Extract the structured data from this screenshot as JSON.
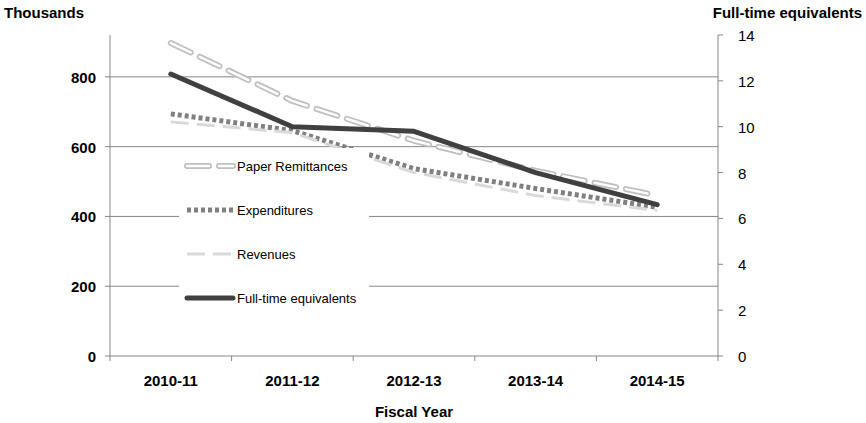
{
  "chart_data": {
    "type": "line",
    "y_label": "Thousands",
    "y2_label": "Full-time equivalents",
    "x_label": "Fiscal Year",
    "categories": [
      "2010-11",
      "2011-12",
      "2012-13",
      "2013-14",
      "2014-15"
    ],
    "ylim": [
      0,
      920
    ],
    "yticks": [
      0,
      200,
      400,
      600,
      800
    ],
    "y2lim": [
      0,
      14
    ],
    "y2ticks": [
      0,
      2,
      4,
      6,
      8,
      10,
      12,
      14
    ],
    "grid": true,
    "legend": "left",
    "series": [
      {
        "name": "Paper Remittances",
        "color": "#bfbfbf",
        "line_style": "double_dash",
        "values": [
          897,
          731,
          617,
          531,
          460
        ]
      },
      {
        "name": "Expenditures",
        "color": "#808080",
        "line_style": "dotted",
        "values": [
          694,
          646,
          537,
          480,
          426
        ]
      },
      {
        "name": "Revenues",
        "color": "#d9d9d9",
        "line_style": "long_dash",
        "values": [
          671,
          640,
          526,
          460,
          417
        ]
      },
      {
        "name": "Full-time equivalents",
        "color": "#404040",
        "line_style": "solid",
        "axis": "y2",
        "values": [
          12.3,
          10.0,
          9.8,
          8.0,
          6.6
        ]
      }
    ]
  }
}
